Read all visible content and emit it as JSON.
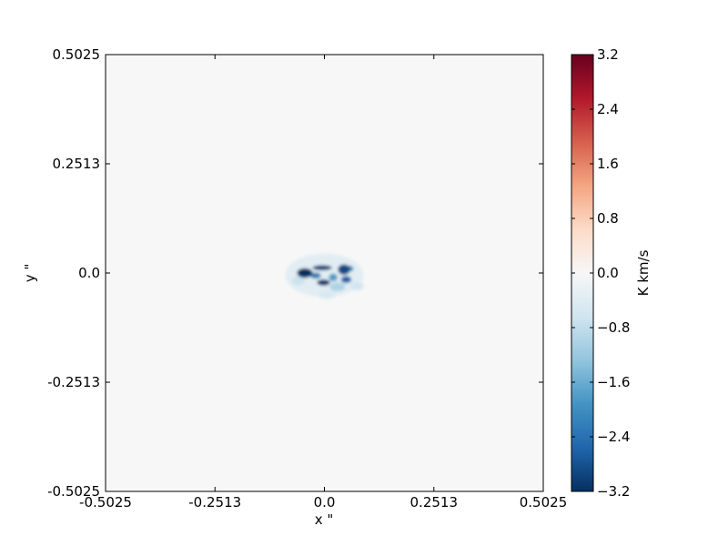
{
  "chart_data": {
    "type": "heatmap",
    "title": "",
    "xlabel": "x \"",
    "ylabel": "y \"",
    "xlim": [
      -0.5025,
      0.5025
    ],
    "ylim": [
      -0.5025,
      0.5025
    ],
    "xticks": [
      {
        "value": -0.5025,
        "label": "-0.5025"
      },
      {
        "value": -0.2513,
        "label": "-0.2513"
      },
      {
        "value": 0.0,
        "label": "0.0"
      },
      {
        "value": 0.2513,
        "label": "0.2513"
      },
      {
        "value": 0.5025,
        "label": "0.5025"
      }
    ],
    "yticks": [
      {
        "value": 0.5025,
        "label": "0.5025"
      },
      {
        "value": 0.2513,
        "label": "0.2513"
      },
      {
        "value": 0.0,
        "label": "0.0"
      },
      {
        "value": -0.2513,
        "label": "-0.2513"
      },
      {
        "value": -0.5025,
        "label": "-0.5025"
      }
    ],
    "colorbar": {
      "label": "K km/s",
      "range": [
        -3.2,
        3.2
      ],
      "colormap": "RdBu_r",
      "ticks": [
        {
          "value": 3.2,
          "label": "3.2"
        },
        {
          "value": 2.4,
          "label": "2.4"
        },
        {
          "value": 1.6,
          "label": "1.6"
        },
        {
          "value": 0.8,
          "label": "0.8"
        },
        {
          "value": 0.0,
          "label": "0.0"
        },
        {
          "value": -0.8,
          "label": "−0.8"
        },
        {
          "value": -1.6,
          "label": "−1.6"
        },
        {
          "value": -2.4,
          "label": "−2.4"
        },
        {
          "value": -3.2,
          "label": "−3.2"
        }
      ]
    },
    "background_value": 0.0,
    "emission_blobs": [
      {
        "x": -0.045,
        "y": 0.0,
        "rx": 0.018,
        "ry": 0.011,
        "value": -3.2
      },
      {
        "x": -0.005,
        "y": 0.012,
        "rx": 0.022,
        "ry": 0.006,
        "value": -3.0
      },
      {
        "x": 0.045,
        "y": 0.008,
        "rx": 0.014,
        "ry": 0.012,
        "value": -2.9
      },
      {
        "x": -0.002,
        "y": -0.022,
        "rx": 0.015,
        "ry": 0.007,
        "value": -3.1
      },
      {
        "x": 0.05,
        "y": -0.015,
        "rx": 0.012,
        "ry": 0.008,
        "value": -2.6
      },
      {
        "x": -0.02,
        "y": -0.006,
        "rx": 0.012,
        "ry": 0.007,
        "value": -2.2
      },
      {
        "x": 0.02,
        "y": -0.01,
        "rx": 0.01,
        "ry": 0.009,
        "value": -1.8
      },
      {
        "x": 0.055,
        "y": 0.01,
        "rx": 0.012,
        "ry": 0.007,
        "value": -2.0
      },
      {
        "x": 0.03,
        "y": -0.032,
        "rx": 0.018,
        "ry": 0.01,
        "value": -1.0
      },
      {
        "x": -0.06,
        "y": -0.018,
        "rx": 0.015,
        "ry": 0.01,
        "value": -0.7
      },
      {
        "x": 0.075,
        "y": -0.03,
        "rx": 0.015,
        "ry": 0.01,
        "value": -0.6
      },
      {
        "x": 0.005,
        "y": -0.05,
        "rx": 0.02,
        "ry": 0.01,
        "value": -0.5
      },
      {
        "x": 0.0,
        "y": -0.005,
        "rx": 0.09,
        "ry": 0.05,
        "value": -0.35
      }
    ],
    "grid": false,
    "legend": "none"
  }
}
